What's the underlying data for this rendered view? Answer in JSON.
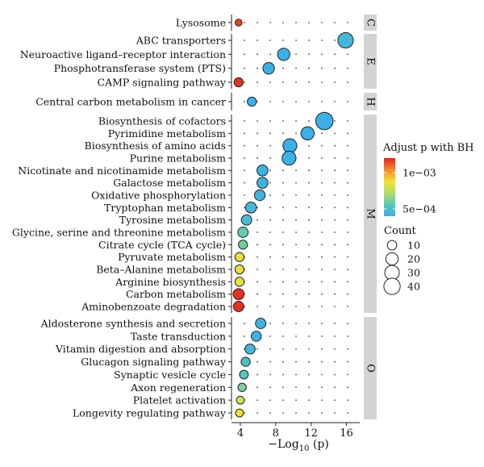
{
  "chart_data": {
    "type": "scatter",
    "xlabel": "−Log",
    "xlabel_sub": "10",
    "xlabel_tail": " (p)",
    "xlim": [
      3,
      17.5
    ],
    "xticks": [
      4,
      8,
      12,
      16
    ],
    "panels": [
      {
        "label": "C",
        "pathways": [
          {
            "name": "Lysosome",
            "x": 3.8,
            "count": 4,
            "padj": 0.00115
          }
        ]
      },
      {
        "label": "E",
        "pathways": [
          {
            "name": "ABC transporters",
            "x": 15.9,
            "count": 35,
            "padj": 0.00045
          },
          {
            "name": "Neuroactive ligand–receptor interaction",
            "x": 8.9,
            "count": 20,
            "padj": 0.0004
          },
          {
            "name": "Phosphotransferase system (PTS)",
            "x": 7.2,
            "count": 17,
            "padj": 0.0004
          },
          {
            "name": "CAMP signaling pathway",
            "x": 3.8,
            "count": 9,
            "padj": 0.00118
          }
        ]
      },
      {
        "label": "H",
        "pathways": [
          {
            "name": "Central carbon metabolism in cancer",
            "x": 5.3,
            "count": 9,
            "padj": 0.0004
          }
        ]
      },
      {
        "label": "M",
        "pathways": [
          {
            "name": "Biosynthesis of cofactors",
            "x": 13.5,
            "count": 46,
            "padj": 0.0004
          },
          {
            "name": "Pyrimidine metabolism",
            "x": 11.6,
            "count": 24,
            "padj": 0.0004
          },
          {
            "name": "Biosynthesis of amino acids",
            "x": 9.6,
            "count": 27,
            "padj": 0.0004
          },
          {
            "name": "Purine metabolism",
            "x": 9.5,
            "count": 27,
            "padj": 0.0004
          },
          {
            "name": "Nicotinate and nicotinamide metabolism",
            "x": 6.5,
            "count": 15,
            "padj": 0.00042
          },
          {
            "name": "Galactose metabolism",
            "x": 6.5,
            "count": 15,
            "padj": 0.00042
          },
          {
            "name": "Oxidative phosphorylation",
            "x": 6.2,
            "count": 14,
            "padj": 0.00042
          },
          {
            "name": "Tryptophan metabolism",
            "x": 5.2,
            "count": 15,
            "padj": 0.00045
          },
          {
            "name": "Tyrosine metabolism",
            "x": 4.7,
            "count": 13,
            "padj": 0.00048
          },
          {
            "name": "Glycine, serine and threonine metabolism",
            "x": 4.3,
            "count": 13,
            "padj": 0.00058
          },
          {
            "name": "Citrate cycle (TCA cycle)",
            "x": 4.3,
            "count": 9,
            "padj": 0.0006
          },
          {
            "name": "Pyruvate metabolism",
            "x": 3.9,
            "count": 9,
            "padj": 0.00085
          },
          {
            "name": "Beta–Alanine metabolism",
            "x": 3.9,
            "count": 9,
            "padj": 0.00085
          },
          {
            "name": "Arginine biosynthesis",
            "x": 3.9,
            "count": 9,
            "padj": 0.00085
          },
          {
            "name": "Carbon metabolism",
            "x": 3.8,
            "count": 15,
            "padj": 0.00118
          },
          {
            "name": "Aminobenzoate degradation",
            "x": 3.8,
            "count": 13,
            "padj": 0.00118
          }
        ]
      },
      {
        "label": "O",
        "pathways": [
          {
            "name": "Aldosterone synthesis and secretion",
            "x": 6.3,
            "count": 13,
            "padj": 0.00042
          },
          {
            "name": "Taste transduction",
            "x": 5.8,
            "count": 12,
            "padj": 0.00042
          },
          {
            "name": "Vitamin digestion and absorption",
            "x": 5.1,
            "count": 12,
            "padj": 0.00045
          },
          {
            "name": "Glucagon signaling pathway",
            "x": 4.6,
            "count": 9,
            "padj": 0.0005
          },
          {
            "name": "Synaptic vesicle cycle",
            "x": 4.4,
            "count": 8,
            "padj": 0.00055
          },
          {
            "name": "Axon regeneration",
            "x": 4.2,
            "count": 7,
            "padj": 0.00062
          },
          {
            "name": "Platelet activation",
            "x": 4.0,
            "count": 6,
            "padj": 0.0008
          },
          {
            "name": "Longevity regulating pathway",
            "x": 3.9,
            "count": 6,
            "padj": 0.00088
          }
        ]
      }
    ],
    "color_legend": {
      "title": "Adjust p with BH",
      "ticks": [
        {
          "label": "1e−03",
          "value": 0.001
        },
        {
          "label": "5e−04",
          "value": 0.0005
        }
      ],
      "min": 0.0004,
      "max": 0.0012,
      "colors": [
        "#3bb0e8",
        "#56c7b8",
        "#b3df6a",
        "#f2df35",
        "#f28a2e",
        "#e0241f"
      ]
    },
    "size_legend": {
      "title": "Count",
      "entries": [
        10,
        20,
        30,
        40
      ]
    },
    "grid": "dotted"
  }
}
